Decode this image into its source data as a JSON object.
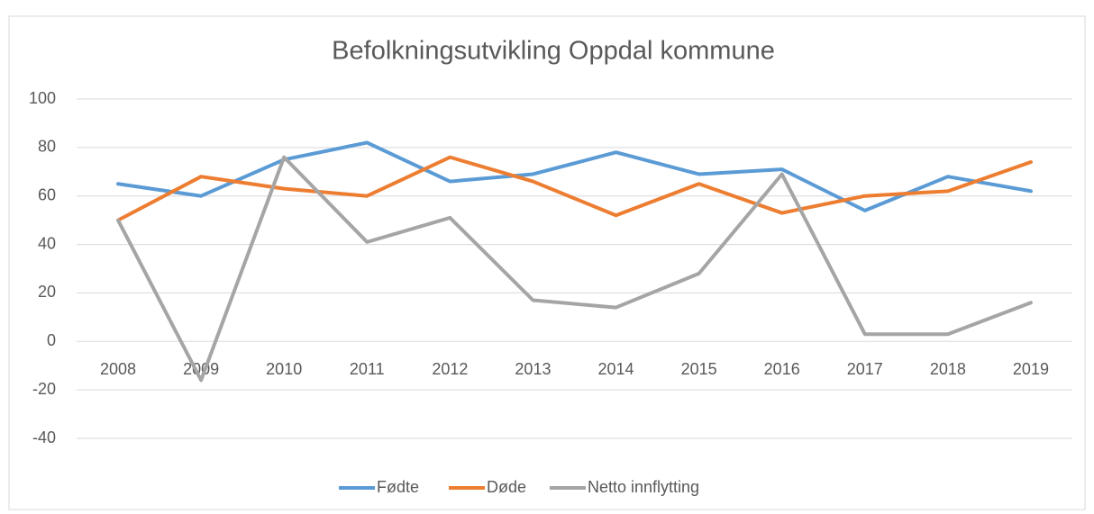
{
  "chart_data": {
    "type": "line",
    "title": "Befolkningsutvikling Oppdal kommune",
    "categories": [
      "2008",
      "2009",
      "2010",
      "2011",
      "2012",
      "2013",
      "2014",
      "2015",
      "2016",
      "2017",
      "2018",
      "2019"
    ],
    "series": [
      {
        "name": "Fødte",
        "color": "#5b9bd5",
        "values": [
          65,
          60,
          75,
          82,
          66,
          69,
          78,
          69,
          71,
          54,
          68,
          62
        ]
      },
      {
        "name": "Døde",
        "color": "#ed7d31",
        "values": [
          50,
          68,
          63,
          60,
          76,
          66,
          52,
          65,
          53,
          60,
          62,
          74
        ]
      },
      {
        "name": "Netto innflytting",
        "color": "#a5a5a5",
        "values": [
          50,
          -16,
          76,
          41,
          51,
          17,
          14,
          28,
          69,
          3,
          3,
          16
        ]
      }
    ],
    "ylim": [
      -40,
      100
    ],
    "yticks": [
      -40,
      -20,
      0,
      20,
      40,
      60,
      80,
      100
    ],
    "grid": true,
    "legend": "bottom"
  }
}
